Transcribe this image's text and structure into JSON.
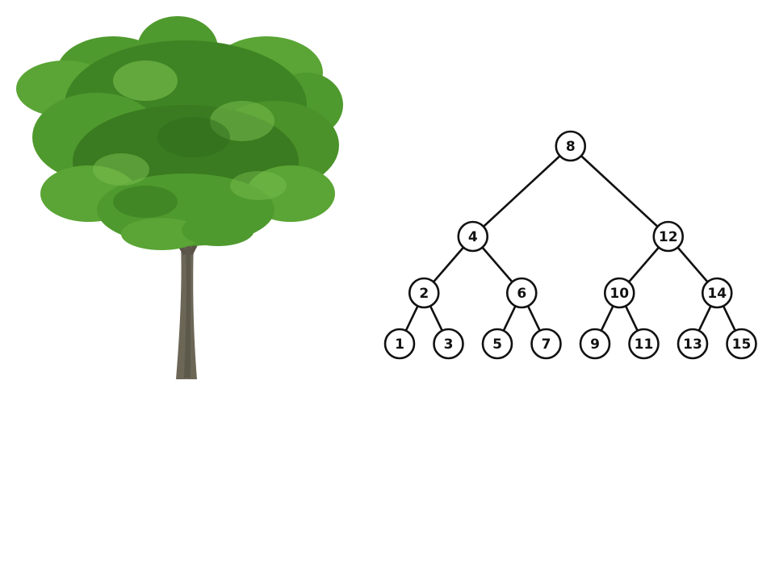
{
  "illustration": {
    "icon": "tree-icon",
    "colors": {
      "foliage_dark": "#2f6b1c",
      "foliage_mid": "#4f9a2e",
      "foliage_light": "#7cc04f",
      "trunk": "#6b6656",
      "trunk_dark": "#4e4a3e"
    }
  },
  "binary_tree": {
    "root": 8,
    "nodes": [
      {
        "id": "n8",
        "label": "8",
        "level": 0,
        "order": 0
      },
      {
        "id": "n4",
        "label": "4",
        "level": 1,
        "order": 0
      },
      {
        "id": "n12",
        "label": "12",
        "level": 1,
        "order": 1
      },
      {
        "id": "n2",
        "label": "2",
        "level": 2,
        "order": 0
      },
      {
        "id": "n6",
        "label": "6",
        "level": 2,
        "order": 1
      },
      {
        "id": "n10",
        "label": "10",
        "level": 2,
        "order": 2
      },
      {
        "id": "n14",
        "label": "14",
        "level": 2,
        "order": 3
      },
      {
        "id": "n1",
        "label": "1",
        "level": 3,
        "order": 0
      },
      {
        "id": "n3",
        "label": "3",
        "level": 3,
        "order": 1
      },
      {
        "id": "n5",
        "label": "5",
        "level": 3,
        "order": 2
      },
      {
        "id": "n7",
        "label": "7",
        "level": 3,
        "order": 3
      },
      {
        "id": "n9",
        "label": "9",
        "level": 3,
        "order": 4
      },
      {
        "id": "n11",
        "label": "11",
        "level": 3,
        "order": 5
      },
      {
        "id": "n13",
        "label": "13",
        "level": 3,
        "order": 6
      },
      {
        "id": "n15",
        "label": "15",
        "level": 3,
        "order": 7
      }
    ],
    "edges": [
      [
        "n8",
        "n4"
      ],
      [
        "n8",
        "n12"
      ],
      [
        "n4",
        "n2"
      ],
      [
        "n4",
        "n6"
      ],
      [
        "n12",
        "n10"
      ],
      [
        "n12",
        "n14"
      ],
      [
        "n2",
        "n1"
      ],
      [
        "n2",
        "n3"
      ],
      [
        "n6",
        "n5"
      ],
      [
        "n6",
        "n7"
      ],
      [
        "n10",
        "n9"
      ],
      [
        "n10",
        "n11"
      ],
      [
        "n14",
        "n13"
      ],
      [
        "n14",
        "n15"
      ]
    ],
    "colors": {
      "stroke": "#111111",
      "fill": "#ffffff"
    }
  }
}
